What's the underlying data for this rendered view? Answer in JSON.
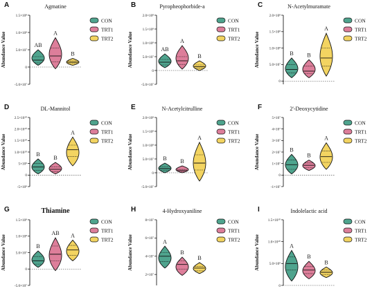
{
  "colors": {
    "CON": "#4fa48e",
    "TRT1": "#dd7e9a",
    "TRT2": "#f3d461"
  },
  "chart_data": [
    {
      "type": "violin",
      "panel": "A",
      "title": "Agmatine",
      "ylabel": "Abundance Value",
      "yticks": [
        "-5.0×10⁷",
        "0",
        "5.0×10⁷",
        "1.0×10⁸",
        "1.5×10⁸"
      ],
      "yvals": [
        -50000000.0,
        0,
        50000000.0,
        100000000.0,
        150000000.0
      ],
      "ylim": [
        -50000000.0,
        150000000.0
      ],
      "groups": [
        "CON",
        "TRT1",
        "TRT2"
      ],
      "legend": [
        "CON",
        "TRT1",
        "TRT2"
      ],
      "letters": [
        "AB",
        "A",
        "B"
      ],
      "series": [
        {
          "min": 5000000.0,
          "q1": 12000000.0,
          "median": 20000000.0,
          "q3": 30000000.0,
          "max": 50000000.0
        },
        {
          "min": -5000000.0,
          "q1": 15000000.0,
          "median": 32000000.0,
          "q3": 55000000.0,
          "max": 85000000.0
        },
        {
          "min": 5000000.0,
          "q1": 10000000.0,
          "median": 14000000.0,
          "q3": 18000000.0,
          "max": 25000000.0
        }
      ]
    },
    {
      "type": "violin",
      "panel": "B",
      "title": "Pyropheophorbide-a",
      "ylabel": "Abundance Value",
      "yticks": [
        "-5.0×10⁷",
        "0",
        "5.0×10⁷",
        "1.0×10⁸",
        "1.5×10⁸",
        "2.0×10⁸"
      ],
      "yvals": [
        -50000000.0,
        0,
        50000000.0,
        100000000.0,
        150000000.0,
        200000000.0
      ],
      "ylim": [
        -50000000.0,
        200000000.0
      ],
      "groups": [
        "CON",
        "TRT1",
        "TRT2"
      ],
      "legend": [
        "CON",
        "TRT1",
        "TRT2"
      ],
      "letters": [
        "AB",
        "A",
        "B"
      ],
      "series": [
        {
          "min": 10000000.0,
          "q1": 20000000.0,
          "median": 30000000.0,
          "q3": 40000000.0,
          "max": 60000000.0
        },
        {
          "min": 5000000.0,
          "q1": 22000000.0,
          "median": 35000000.0,
          "q3": 50000000.0,
          "max": 90000000.0
        },
        {
          "min": 0,
          "q1": 8000000.0,
          "median": 14000000.0,
          "q3": 20000000.0,
          "max": 35000000.0
        }
      ]
    },
    {
      "type": "violin",
      "panel": "C",
      "title": "N-Acetylmuramate",
      "ylabel": "Abundance Value",
      "yticks": [
        "0",
        "5.0×10⁷",
        "1.0×10⁸",
        "1.5×10⁸",
        "2.0×10⁸"
      ],
      "yvals": [
        0,
        50000000.0,
        100000000.0,
        150000000.0,
        200000000.0
      ],
      "ylim": [
        -10000000.0,
        200000000.0
      ],
      "groups": [
        "CON",
        "TRT1",
        "TRT2"
      ],
      "legend": [
        "CON",
        "TRT1",
        "TRT2"
      ],
      "letters": [
        "B",
        "B",
        "A"
      ],
      "series": [
        {
          "min": 10000000.0,
          "q1": 25000000.0,
          "median": 35000000.0,
          "q3": 50000000.0,
          "max": 70000000.0
        },
        {
          "min": 10000000.0,
          "q1": 22000000.0,
          "median": 30000000.0,
          "q3": 45000000.0,
          "max": 65000000.0
        },
        {
          "min": 15000000.0,
          "q1": 45000000.0,
          "median": 70000000.0,
          "q3": 100000000.0,
          "max": 145000000.0
        }
      ]
    },
    {
      "type": "violin",
      "panel": "D",
      "title": "DL-Mannitol",
      "ylabel": "Abundance Value",
      "yticks": [
        "-5×10⁹",
        "0",
        "5×10⁹",
        "1.0×10¹⁰",
        "1.5×10¹⁰",
        "2.0×10¹⁰",
        "2.5×10¹⁰"
      ],
      "yvals": [
        -5000000000.0,
        0,
        5000000000.0,
        10000000000.0,
        15000000000.0,
        20000000000.0,
        25000000000.0
      ],
      "ylim": [
        -5000000000.0,
        25000000000.0
      ],
      "groups": [
        "CON",
        "TRT1",
        "TRT2"
      ],
      "legend": [
        "CON",
        "TRT1",
        "TRT2"
      ],
      "letters": [
        "B",
        "B",
        "A"
      ],
      "series": [
        {
          "min": 500000000.0,
          "q1": 2000000000.0,
          "median": 3500000000.0,
          "q3": 5000000000.0,
          "max": 7000000000.0
        },
        {
          "min": 500000000.0,
          "q1": 1500000000.0,
          "median": 2500000000.0,
          "q3": 3500000000.0,
          "max": 5500000000.0
        },
        {
          "min": 4000000000.0,
          "q1": 8000000000.0,
          "median": 11000000000.0,
          "q3": 13000000000.0,
          "max": 16500000000.0
        }
      ]
    },
    {
      "type": "violin",
      "panel": "E",
      "title": "N-Acetylcitrulline",
      "ylabel": "Abundance Value",
      "yticks": [
        "-5.0×10⁷",
        "0",
        "5.0×10⁷",
        "1.0×10⁸",
        "1.5×10⁸",
        "2.0×10⁸"
      ],
      "yvals": [
        -50000000.0,
        0,
        50000000.0,
        100000000.0,
        150000000.0,
        200000000.0
      ],
      "ylim": [
        -50000000.0,
        200000000.0
      ],
      "groups": [
        "CON",
        "TRT1",
        "TRT2"
      ],
      "legend": [
        "CON",
        "TRT1",
        "TRT2"
      ],
      "letters": [
        "B",
        "B",
        "A"
      ],
      "series": [
        {
          "min": 0,
          "q1": 8000000.0,
          "median": 15000000.0,
          "q3": 22000000.0,
          "max": 35000000.0
        },
        {
          "min": 0,
          "q1": 4000000.0,
          "median": 8000000.0,
          "q3": 12000000.0,
          "max": 25000000.0
        },
        {
          "min": -30000000.0,
          "q1": 10000000.0,
          "median": 35000000.0,
          "q3": 65000000.0,
          "max": 110000000.0
        }
      ]
    },
    {
      "type": "violin",
      "panel": "F",
      "title": "2'-Deoxycytidine",
      "ylabel": "Abundance Value",
      "yticks": [
        "-1×10⁷",
        "0",
        "1×10⁷",
        "2×10⁷",
        "3×10⁷",
        "4×10⁷",
        "5×10⁷"
      ],
      "yvals": [
        -10000000.0,
        0,
        10000000.0,
        20000000.0,
        30000000.0,
        40000000.0,
        50000000.0
      ],
      "ylim": [
        -10000000.0,
        50000000.0
      ],
      "groups": [
        "CON",
        "TRT1",
        "TRT2"
      ],
      "legend": [
        "CON",
        "TRT1",
        "TRT2"
      ],
      "letters": [
        "B",
        "B",
        "A"
      ],
      "series": [
        {
          "min": 1000000.0,
          "q1": 5000000.0,
          "median": 9000000.0,
          "q3": 13000000.0,
          "max": 18000000.0
        },
        {
          "min": 4000000.0,
          "q1": 6500000.0,
          "median": 8500000.0,
          "q3": 10500000.0,
          "max": 13000000.0
        },
        {
          "min": 5000000.0,
          "q1": 11000000.0,
          "median": 16000000.0,
          "q3": 21000000.0,
          "max": 28000000.0
        }
      ]
    },
    {
      "type": "violin",
      "panel": "G",
      "title": "Thiamine",
      "ylabel": "Abundance Value",
      "yticks": [
        "-5.0×10⁷",
        "0",
        "5.0×10⁷",
        "1.0×10⁸",
        "1.5×10⁸"
      ],
      "yvals": [
        -50000000.0,
        0,
        50000000.0,
        100000000.0,
        150000000.0
      ],
      "ylim": [
        -50000000.0,
        150000000.0
      ],
      "groups": [
        "CON",
        "TRT1",
        "TRT2"
      ],
      "legend": [
        "CON",
        "TRT1",
        "TRT2"
      ],
      "letters": [
        "B",
        "AB",
        "A"
      ],
      "series": [
        {
          "min": 5000000.0,
          "q1": 15000000.0,
          "median": 25000000.0,
          "q3": 38000000.0,
          "max": 55000000.0
        },
        {
          "min": -5000000.0,
          "q1": 25000000.0,
          "median": 45000000.0,
          "q3": 70000000.0,
          "max": 95000000.0
        },
        {
          "min": 25000000.0,
          "q1": 42000000.0,
          "median": 58000000.0,
          "q3": 72000000.0,
          "max": 88000000.0
        }
      ]
    },
    {
      "type": "violin",
      "panel": "H",
      "title": "4-Hydroxyaniline",
      "ylabel": "Abundance Value",
      "yticks": [
        "2×10⁷",
        "4×10⁷",
        "6×10⁷",
        "8×10⁷"
      ],
      "yvals": [
        20000000.0,
        40000000.0,
        60000000.0,
        80000000.0
      ],
      "ylim": [
        8000000.0,
        80000000.0
      ],
      "groups": [
        "CON",
        "TRT1",
        "TRT2"
      ],
      "legend": [
        "CON",
        "TRT1",
        "TRT2"
      ],
      "letters": [
        "A",
        "B",
        "B"
      ],
      "series": [
        {
          "min": 27000000.0,
          "q1": 34000000.0,
          "median": 40000000.0,
          "q3": 44000000.0,
          "max": 51000000.0
        },
        {
          "min": 19000000.0,
          "q1": 26000000.0,
          "median": 31000000.0,
          "q3": 35000000.0,
          "max": 39000000.0
        },
        {
          "min": 21000000.0,
          "q1": 24000000.0,
          "median": 27000000.0,
          "q3": 29000000.0,
          "max": 33000000.0
        }
      ]
    },
    {
      "type": "violin",
      "panel": "I",
      "title": "Indolelactic acid",
      "ylabel": "Abundance Value",
      "yticks": [
        "0",
        "5.0×10⁹",
        "1.0×10¹⁰",
        "1.5×10¹⁰"
      ],
      "yvals": [
        0,
        5000000000.0,
        10000000000.0,
        15000000000.0
      ],
      "ylim": [
        0,
        15000000000.0
      ],
      "groups": [
        "CON",
        "TRT1",
        "TRT2"
      ],
      "legend": [
        "CON",
        "TRT1",
        "TRT2"
      ],
      "letters": [
        "A",
        "B",
        "B"
      ],
      "series": [
        {
          "min": 1000000000.0,
          "q1": 3500000000.0,
          "median": 5000000000.0,
          "q3": 6500000000.0,
          "max": 8000000000.0
        },
        {
          "min": 1500000000.0,
          "q1": 2700000000.0,
          "median": 3500000000.0,
          "q3": 4300000000.0,
          "max": 5500000000.0
        },
        {
          "min": 1800000000.0,
          "q1": 2500000000.0,
          "median": 3000000000.0,
          "q3": 3500000000.0,
          "max": 4200000000.0
        }
      ]
    }
  ]
}
